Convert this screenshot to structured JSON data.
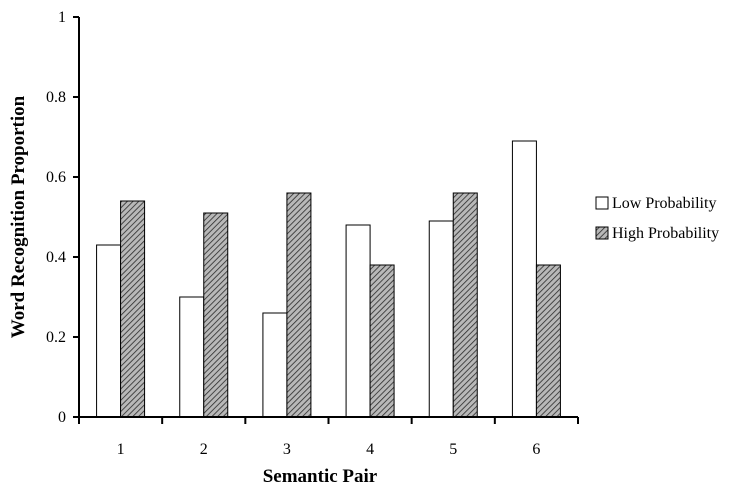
{
  "chart_data": {
    "type": "bar",
    "title": "",
    "xlabel": "Semantic Pair",
    "ylabel": "Word Recognition Proportion",
    "categories": [
      "1",
      "2",
      "3",
      "4",
      "5",
      "6"
    ],
    "ylim": [
      0,
      1
    ],
    "yticks": [
      "0",
      "0.2",
      "0.4",
      "0.6",
      "0.8",
      "1"
    ],
    "grid": false,
    "legend_position": "right",
    "series": [
      {
        "name": "Low Probability",
        "values": [
          0.43,
          0.3,
          0.26,
          0.48,
          0.49,
          0.69
        ],
        "fill": "#ffffff"
      },
      {
        "name": "High Probability",
        "values": [
          0.54,
          0.51,
          0.56,
          0.38,
          0.56,
          0.38
        ],
        "fill": "hatched-gray"
      }
    ]
  }
}
